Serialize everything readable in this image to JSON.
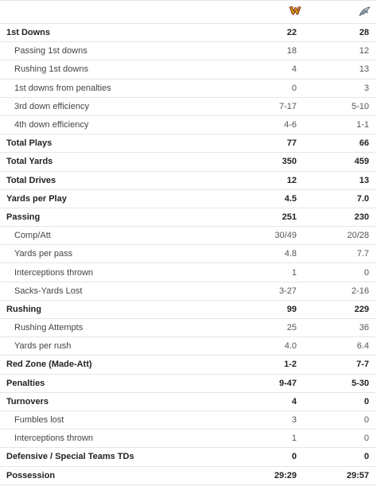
{
  "teams": {
    "away": {
      "logo": "W",
      "icon": "commanders-logo-icon",
      "color": "#d4a017"
    },
    "home": {
      "icon": "eagles-logo-icon",
      "color": "#6b7b85"
    }
  },
  "rows": [
    {
      "label": "1st Downs",
      "away": "22",
      "home": "28",
      "sub": false
    },
    {
      "label": "Passing 1st downs",
      "away": "18",
      "home": "12",
      "sub": true
    },
    {
      "label": "Rushing 1st downs",
      "away": "4",
      "home": "13",
      "sub": true
    },
    {
      "label": "1st downs from penalties",
      "away": "0",
      "home": "3",
      "sub": true
    },
    {
      "label": "3rd down efficiency",
      "away": "7-17",
      "home": "5-10",
      "sub": true
    },
    {
      "label": "4th down efficiency",
      "away": "4-6",
      "home": "1-1",
      "sub": true
    },
    {
      "label": "Total Plays",
      "away": "77",
      "home": "66",
      "sub": false
    },
    {
      "label": "Total Yards",
      "away": "350",
      "home": "459",
      "sub": false
    },
    {
      "label": "Total Drives",
      "away": "12",
      "home": "13",
      "sub": false
    },
    {
      "label": "Yards per Play",
      "away": "4.5",
      "home": "7.0",
      "sub": false
    },
    {
      "label": "Passing",
      "away": "251",
      "home": "230",
      "sub": false
    },
    {
      "label": "Comp/Att",
      "away": "30/49",
      "home": "20/28",
      "sub": true
    },
    {
      "label": "Yards per pass",
      "away": "4.8",
      "home": "7.7",
      "sub": true
    },
    {
      "label": "Interceptions thrown",
      "away": "1",
      "home": "0",
      "sub": true
    },
    {
      "label": "Sacks-Yards Lost",
      "away": "3-27",
      "home": "2-16",
      "sub": true
    },
    {
      "label": "Rushing",
      "away": "99",
      "home": "229",
      "sub": false
    },
    {
      "label": "Rushing Attempts",
      "away": "25",
      "home": "36",
      "sub": true
    },
    {
      "label": "Yards per rush",
      "away": "4.0",
      "home": "6.4",
      "sub": true
    },
    {
      "label": "Red Zone (Made-Att)",
      "away": "1-2",
      "home": "7-7",
      "sub": false
    },
    {
      "label": "Penalties",
      "away": "9-47",
      "home": "5-30",
      "sub": false
    },
    {
      "label": "Turnovers",
      "away": "4",
      "home": "0",
      "sub": false
    },
    {
      "label": "Fumbles lost",
      "away": "3",
      "home": "0",
      "sub": true
    },
    {
      "label": "Interceptions thrown",
      "away": "1",
      "home": "0",
      "sub": true
    },
    {
      "label": "Defensive / Special Teams TDs",
      "away": "0",
      "home": "0",
      "sub": false
    },
    {
      "label": "Possession",
      "away": "29:29",
      "home": "29:57",
      "sub": false
    }
  ]
}
